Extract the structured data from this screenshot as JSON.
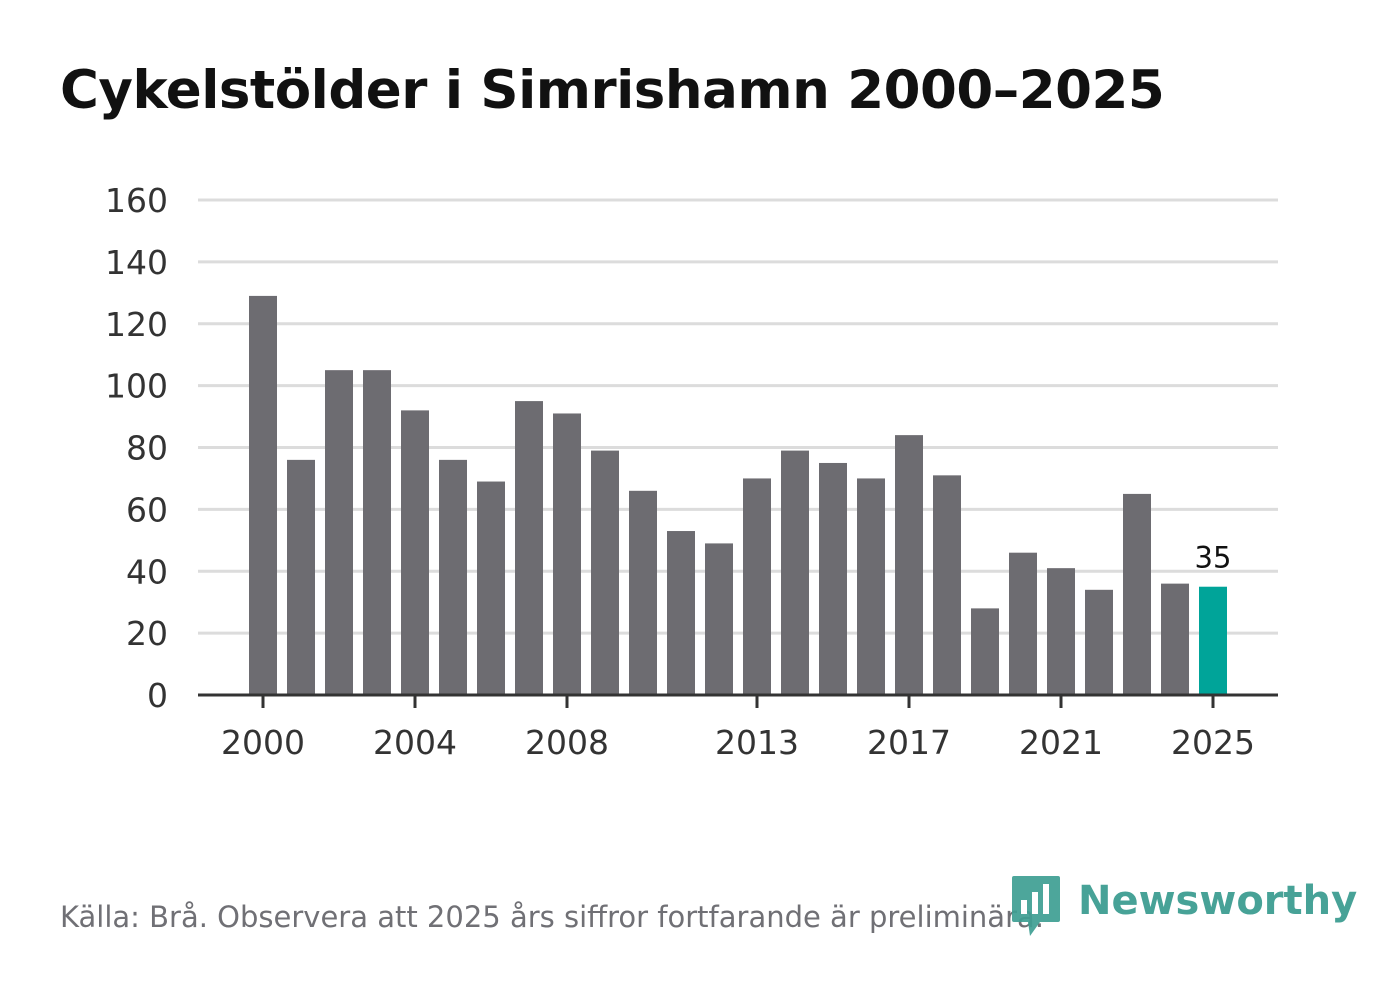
{
  "chart_data": {
    "type": "bar",
    "title": "Cykelstölder i Simrishamn 2000–2025",
    "xlabel": "",
    "ylabel": "",
    "ylim": [
      0,
      160
    ],
    "yticks": [
      "0",
      "20",
      "40",
      "60",
      "80",
      "100",
      "120",
      "140",
      "160"
    ],
    "xtick_labels": [
      "2000",
      "2004",
      "2008",
      "2013",
      "2017",
      "2021",
      "2025"
    ],
    "categories": [
      2000,
      2001,
      2002,
      2003,
      2004,
      2005,
      2006,
      2007,
      2008,
      2009,
      2010,
      2011,
      2012,
      2013,
      2014,
      2015,
      2016,
      2017,
      2018,
      2019,
      2020,
      2021,
      2022,
      2023,
      2024,
      2025
    ],
    "values": [
      129,
      76,
      105,
      105,
      92,
      76,
      69,
      95,
      91,
      79,
      66,
      53,
      49,
      70,
      79,
      75,
      70,
      84,
      71,
      28,
      46,
      41,
      34,
      65,
      36,
      35
    ],
    "highlight_index": 25,
    "annotation": "35",
    "colors": {
      "bar": "#6d6c71",
      "highlight": "#00a499",
      "grid": "#dcdcdc",
      "axis": "#333333",
      "tick_text": "#333333"
    }
  },
  "footer": {
    "source": "Källa: Brå. Observera att 2025 års siffror fortfarande är preliminära."
  },
  "logo": {
    "text": "Newsworthy",
    "icon": "newsworthy-logo-icon",
    "color": "#3e9e92"
  }
}
